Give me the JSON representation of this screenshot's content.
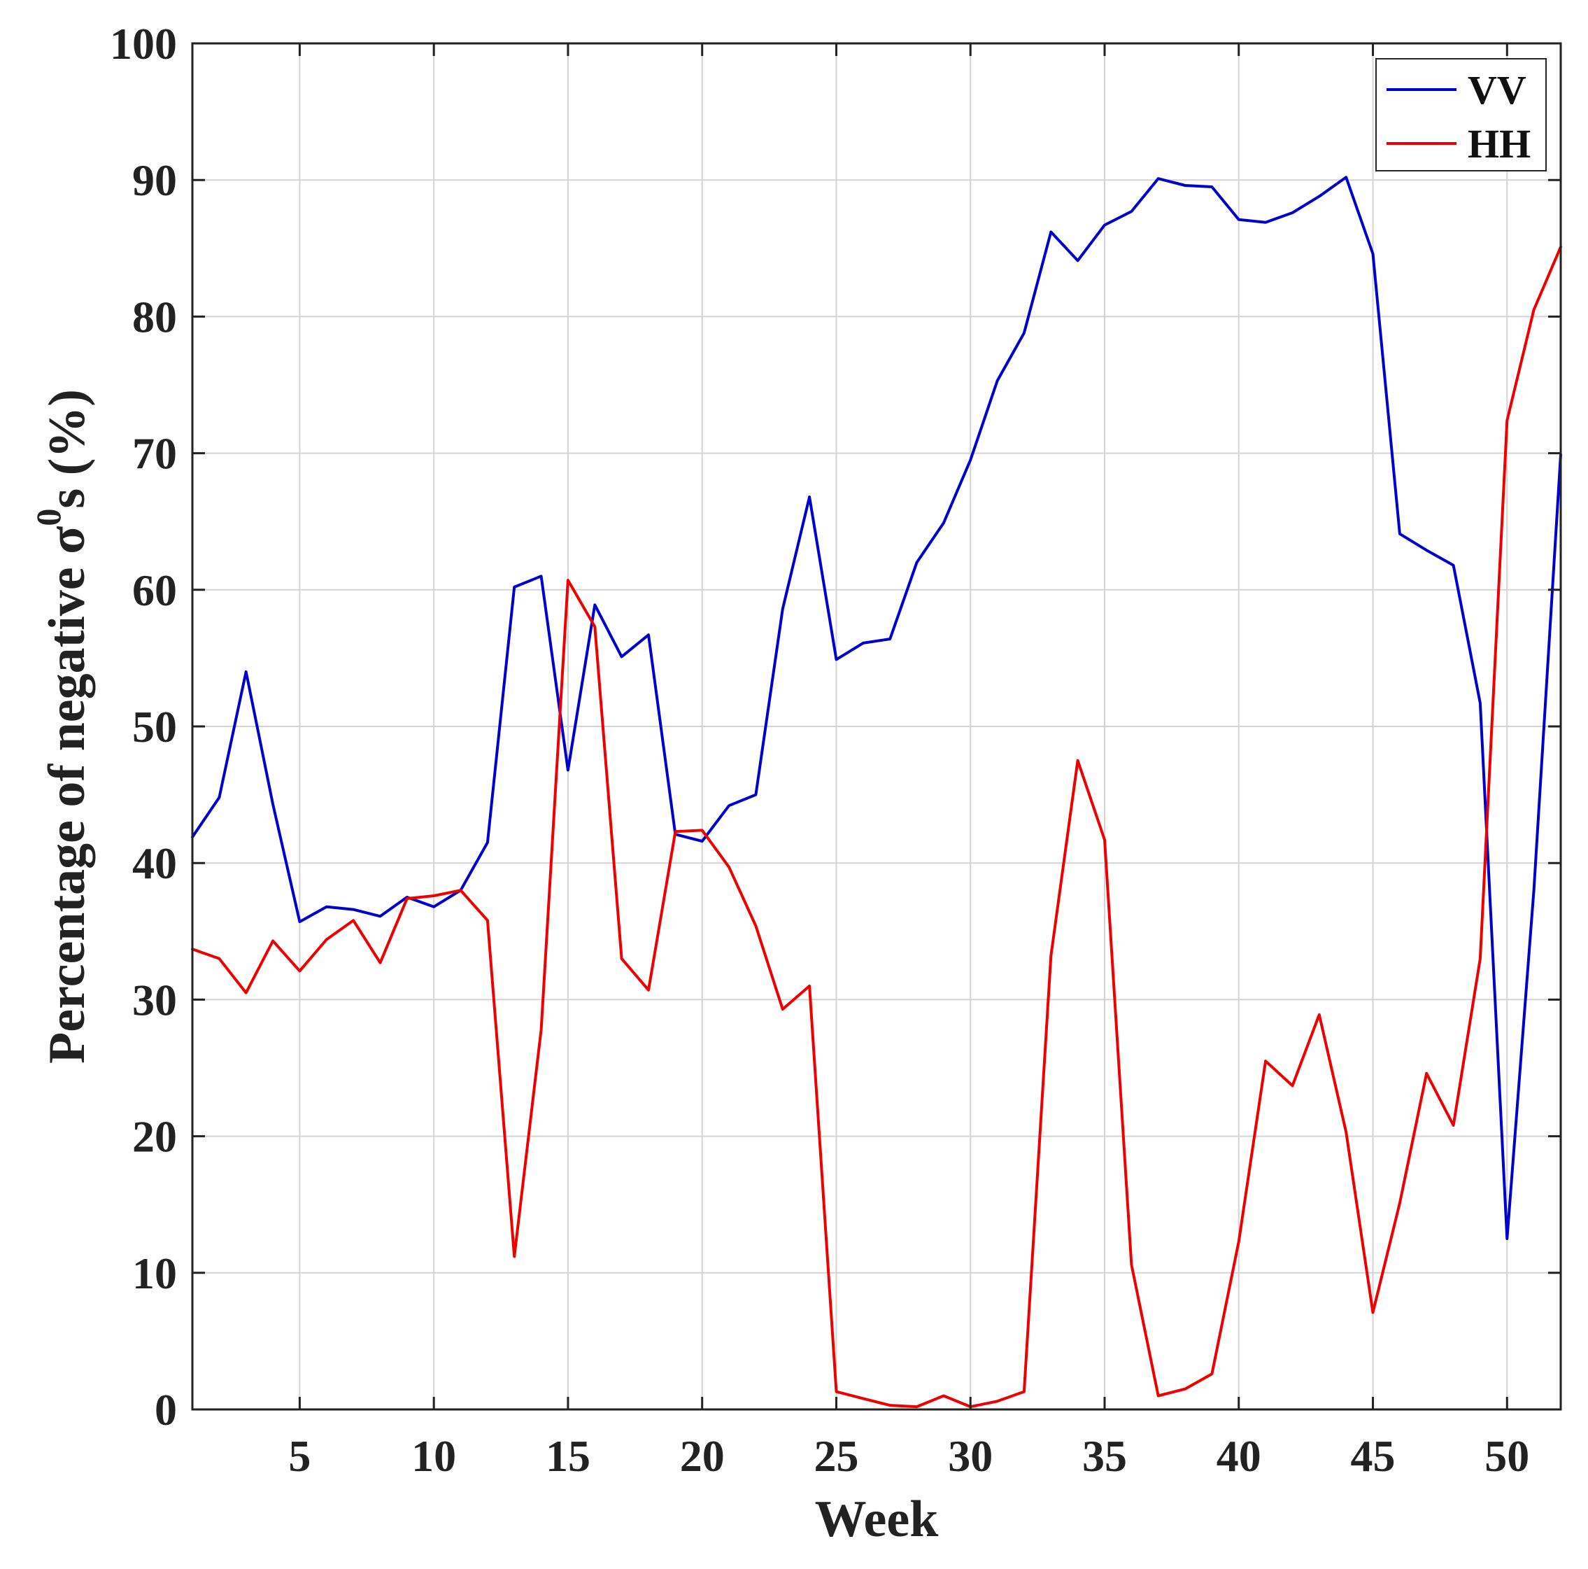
{
  "chart_data": {
    "type": "line",
    "xlabel": "Week",
    "ylabel": "Percentage of negative σ",
    "ylabel_sup": "0",
    "ylabel_suffix": "s (%)",
    "xlim": [
      1,
      52
    ],
    "ylim": [
      0,
      100
    ],
    "xticks": [
      5,
      10,
      15,
      20,
      25,
      30,
      35,
      40,
      45,
      50
    ],
    "yticks": [
      0,
      10,
      20,
      30,
      40,
      50,
      60,
      70,
      80,
      90,
      100
    ],
    "grid": true,
    "legend_position": "top-right",
    "x": [
      1,
      2,
      3,
      4,
      5,
      6,
      7,
      8,
      9,
      10,
      11,
      12,
      13,
      14,
      15,
      16,
      17,
      18,
      19,
      20,
      21,
      22,
      23,
      24,
      25,
      26,
      27,
      28,
      29,
      30,
      31,
      32,
      33,
      34,
      35,
      36,
      37,
      38,
      39,
      40,
      41,
      42,
      43,
      44,
      45,
      46,
      47,
      48,
      49,
      50,
      51,
      52
    ],
    "series": [
      {
        "name": "VV",
        "color": "#0000cc",
        "values": [
          41.9,
          44.8,
          54.0,
          44.3,
          35.7,
          36.8,
          36.6,
          36.1,
          37.5,
          36.8,
          38.0,
          41.5,
          60.2,
          61.0,
          46.8,
          58.9,
          55.1,
          56.7,
          42.1,
          41.6,
          44.2,
          45.0,
          58.6,
          66.8,
          54.9,
          56.1,
          56.4,
          62.0,
          64.9,
          69.5,
          75.3,
          78.8,
          86.2,
          84.1,
          86.7,
          87.7,
          90.1,
          89.6,
          89.5,
          87.1,
          86.9,
          87.6,
          88.8,
          90.2,
          84.6,
          64.1,
          62.9,
          61.8,
          51.7,
          12.5,
          38.0,
          69.9
        ]
      },
      {
        "name": "HH",
        "color": "#ee0000",
        "values": [
          33.7,
          33.0,
          30.5,
          34.3,
          32.1,
          34.4,
          35.8,
          32.7,
          37.4,
          37.6,
          38.0,
          35.8,
          11.2,
          27.8,
          60.7,
          57.3,
          33.0,
          30.7,
          42.3,
          42.4,
          39.7,
          35.4,
          29.3,
          31.0,
          1.3,
          0.8,
          0.3,
          0.2,
          1.0,
          0.2,
          0.6,
          1.3,
          33.2,
          47.5,
          41.7,
          10.6,
          1.0,
          1.5,
          2.6,
          12.3,
          25.5,
          23.7,
          28.9,
          20.3,
          7.1,
          15.1,
          24.6,
          20.8,
          33.0,
          72.4,
          80.5,
          85.1
        ]
      }
    ]
  }
}
